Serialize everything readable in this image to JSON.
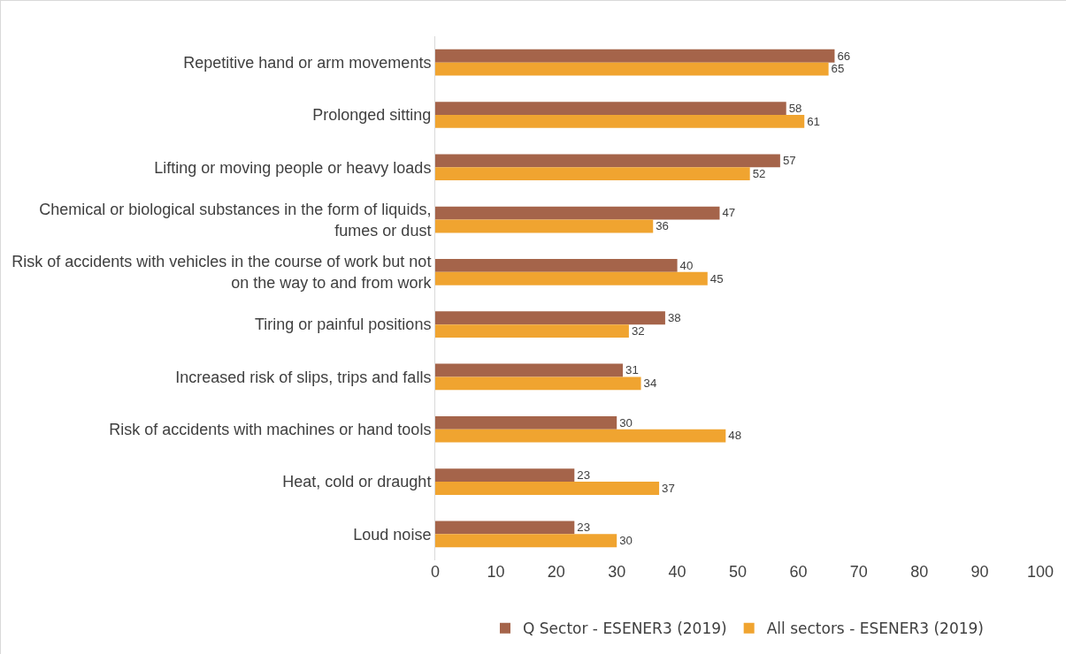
{
  "chart_data": {
    "type": "bar",
    "orientation": "horizontal",
    "categories": [
      "Repetitive hand or arm movements",
      "Prolonged sitting",
      "Lifting or moving people or heavy loads",
      "Chemical or biological substances in the form of liquids, fumes or dust",
      "Risk of accidents with vehicles in the course of work but not on the way to and from work",
      "Tiring or painful positions",
      "Increased risk of slips, trips and falls",
      "Risk of accidents with machines or hand tools",
      "Heat, cold or draught",
      "Loud noise"
    ],
    "series": [
      {
        "name": "Q Sector - ESENER3 (2019)",
        "color": "#a5644a",
        "values": [
          66,
          58,
          57,
          47,
          40,
          38,
          31,
          30,
          23,
          23
        ]
      },
      {
        "name": "All sectors - ESENER3 (2019)",
        "color": "#f0a430",
        "values": [
          65,
          61,
          52,
          36,
          45,
          32,
          34,
          48,
          37,
          30
        ]
      }
    ],
    "xlim": [
      0,
      100
    ],
    "xticks": [
      0,
      10,
      20,
      30,
      40,
      50,
      60,
      70,
      80,
      90,
      100
    ],
    "data_labels": true,
    "grid": false,
    "legend": "bottom"
  }
}
